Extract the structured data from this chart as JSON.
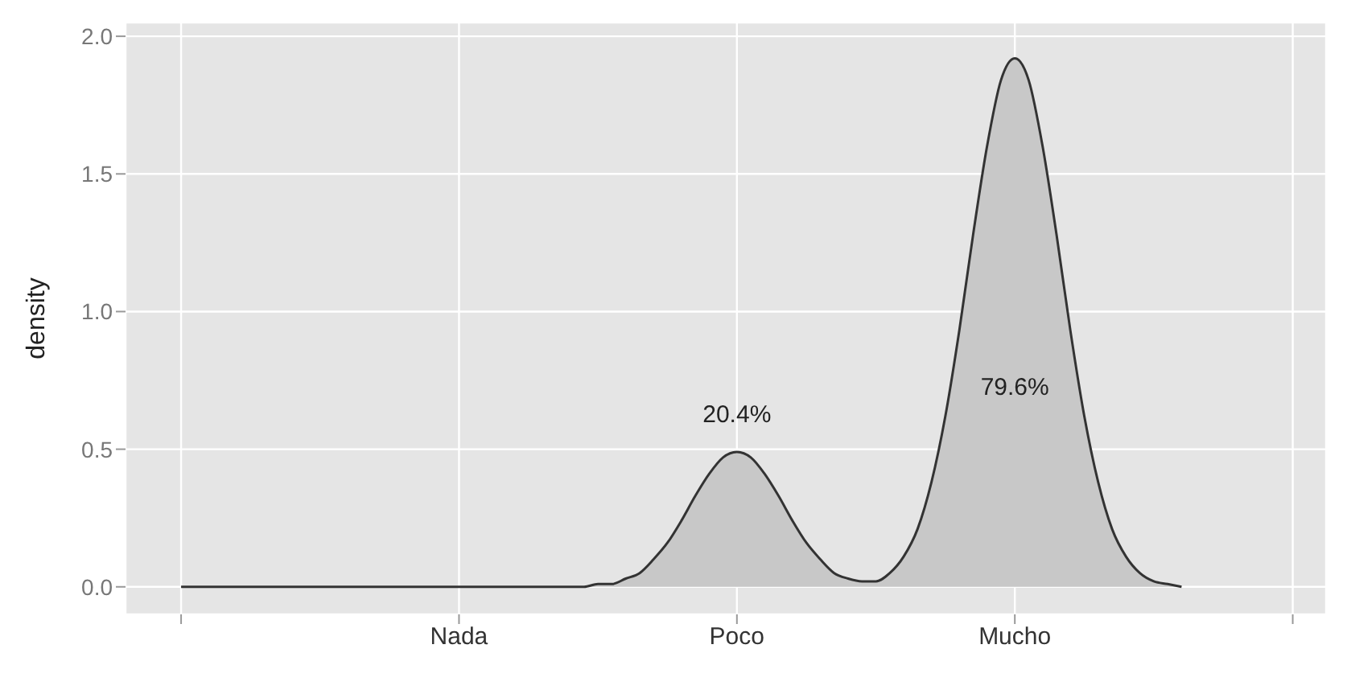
{
  "chart_data": {
    "type": "area",
    "ylabel": "density",
    "categories": [
      null,
      null,
      null,
      null,
      null,
      null,
      null,
      null,
      null,
      null,
      null,
      null,
      null,
      null,
      null,
      null,
      null,
      null,
      null,
      null,
      "Nada",
      null,
      null,
      null,
      null,
      null,
      null,
      null,
      null,
      null,
      null,
      null,
      null,
      null,
      null,
      null,
      null,
      null,
      null,
      null,
      "Poco",
      null,
      null,
      null,
      null,
      null,
      null,
      null,
      null,
      null,
      null,
      null,
      null,
      null,
      null,
      null,
      null,
      null,
      null,
      null,
      "Mucho",
      null,
      null,
      null,
      null,
      null,
      null,
      null,
      null,
      null,
      null,
      null,
      null,
      null,
      null,
      null,
      null,
      null,
      null,
      null,
      null
    ],
    "series": [
      {
        "color": "#c8c8c8",
        "values": [
          0,
          0,
          0,
          0,
          0,
          0,
          0,
          0,
          0,
          0,
          0,
          0,
          0,
          0,
          0,
          0,
          0,
          0,
          0,
          0,
          0,
          0,
          0,
          0,
          0,
          0,
          0,
          0,
          0,
          0,
          0.01,
          0.01,
          0.03,
          0.05,
          0.1,
          0.16,
          0.24,
          0.33,
          0.41,
          0.47,
          0.49,
          0.47,
          0.41,
          0.33,
          0.24,
          0.16,
          0.1,
          0.05,
          0.03,
          0.02,
          0.02,
          0.05,
          0.11,
          0.21,
          0.38,
          0.62,
          0.93,
          1.28,
          1.6,
          1.84,
          1.92,
          1.84,
          1.6,
          1.28,
          0.93,
          0.62,
          0.38,
          0.21,
          0.11,
          0.05,
          0.02,
          0.01,
          0,
          null,
          null,
          null,
          null,
          null,
          null,
          null,
          null
        ]
      }
    ],
    "ylim": [
      -0.1,
      2.05
    ],
    "yticks": [
      {
        "value": 0,
        "label": "0.0"
      },
      {
        "value": 0.5,
        "label": "0.5"
      },
      {
        "value": 1,
        "label": "1.0"
      },
      {
        "value": 1.5,
        "label": "1.5"
      },
      {
        "value": 2,
        "label": "2.0"
      }
    ],
    "annotations": [
      "20.4%",
      "79.6%"
    ],
    "grid": true,
    "legend": false
  }
}
